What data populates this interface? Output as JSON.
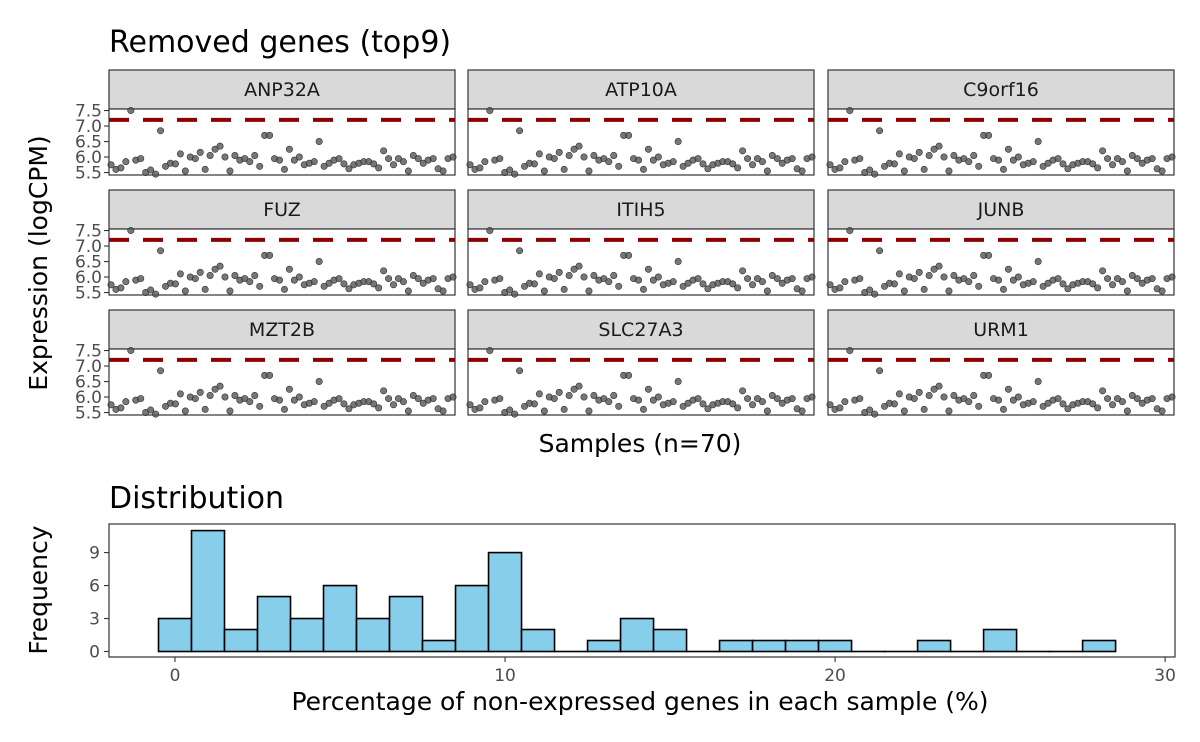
{
  "top_title": "Removed genes (top9)",
  "bottom_title": "Distribution",
  "chart_data": [
    {
      "type": "scatter",
      "title": "Removed genes (top9)",
      "xlabel": "Samples (n=70)",
      "ylabel": "Expression (logCPM)",
      "n_samples": 70,
      "ylim": [
        5.42,
        7.55
      ],
      "yticks": [
        "5.5",
        "6.0",
        "6.5",
        "7.0",
        "7.5"
      ],
      "threshold": 7.2,
      "threshold_color": "#8b0000",
      "point_color": "#555555",
      "facets": [
        "ANP32A",
        "ATP10A",
        "C9orf16",
        "FUZ",
        "ITIH5",
        "JUNB",
        "MZT2B",
        "SLC27A3",
        "URM1"
      ],
      "expression_values": [
        5.75,
        5.6,
        5.65,
        5.85,
        7.5,
        5.9,
        5.95,
        5.5,
        5.58,
        5.45,
        6.85,
        5.7,
        5.8,
        5.78,
        6.1,
        5.55,
        6.0,
        5.95,
        6.15,
        5.6,
        6.05,
        6.25,
        6.35,
        6.0,
        5.55,
        6.05,
        5.9,
        5.95,
        5.85,
        6.05,
        5.7,
        6.7,
        6.7,
        5.95,
        5.9,
        5.6,
        6.25,
        5.9,
        6.0,
        5.75,
        5.8,
        5.85,
        6.5,
        5.7,
        5.8,
        5.9,
        5.95,
        5.78,
        5.62,
        5.75,
        5.8,
        5.85,
        5.85,
        5.78,
        5.65,
        6.2,
        5.95,
        5.75,
        5.95,
        5.85,
        5.55,
        6.05,
        5.95,
        5.8,
        5.9,
        5.95,
        5.62,
        5.55,
        5.95,
        6.0
      ]
    },
    {
      "type": "bar",
      "subtype": "histogram",
      "title": "Distribution",
      "xlabel": "Percentage of non-expressed genes in each sample (%)",
      "ylabel": "Frequency",
      "bin_width": 1,
      "x": [
        0,
        1,
        2,
        3,
        4,
        5,
        6,
        7,
        8,
        9,
        10,
        11,
        12,
        13,
        14,
        15,
        16,
        17,
        18,
        19,
        20,
        21,
        22,
        23,
        24,
        25,
        26,
        27,
        28
      ],
      "values": [
        3,
        11,
        2,
        5,
        3,
        6,
        3,
        5,
        1,
        6,
        9,
        2,
        0,
        1,
        3,
        2,
        0,
        1,
        1,
        1,
        1,
        0,
        0,
        1,
        0,
        2,
        0,
        0,
        1
      ],
      "xlim": [
        -2,
        30.3
      ],
      "ylim": [
        -0.5,
        11.6
      ],
      "xticks": [
        "0",
        "10",
        "20",
        "30"
      ],
      "yticks": [
        "0",
        "3",
        "6",
        "9"
      ],
      "bar_color": "#87ceeb"
    }
  ]
}
